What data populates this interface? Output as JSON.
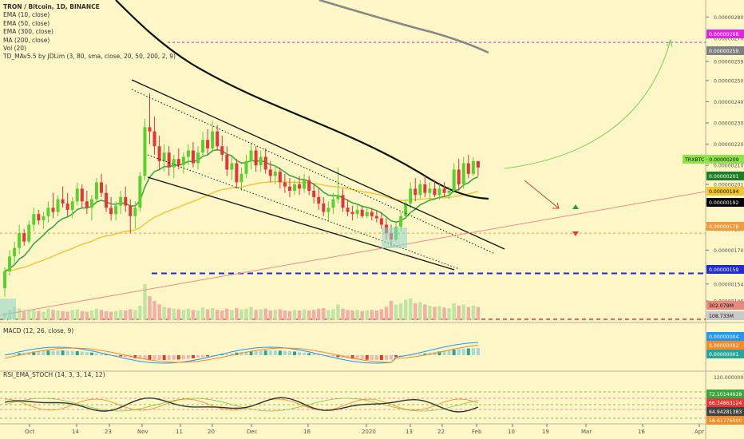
{
  "header": {
    "symbol_line": "TRON / Bitcoin, 1D, BINANCE",
    "indicators": [
      "EMA (10, close)",
      "EMA (50, close)",
      "EMA (300, close)",
      "MA (200, close)",
      "Vol (20)",
      "TD_MAv5.5 by JDLim (3, 80, sma, close, 20, 50, 200, 2, 9)"
    ]
  },
  "price_axis": {
    "ticks": [
      "0.00000280",
      "0.00000270",
      "0.00000259",
      "0.00000250",
      "0.00000240",
      "0.00000230",
      "0.00000220",
      "0.00000210",
      "0.00000201",
      "0.00000192",
      "0.00000180",
      "0.00000170",
      "0.00000162",
      "0.00000154",
      "0.00000146"
    ],
    "labels": [
      {
        "text": "0.00000268",
        "color": "#e024e0"
      },
      {
        "text": "0.00000259",
        "color": "#808080"
      },
      {
        "text": "TRXBTC · 0.00000209",
        "color": "#8ee34d"
      },
      {
        "text": "0.00000201",
        "color": "#1b7f2a"
      },
      {
        "text": "0.00000194",
        "color": "#f3c531"
      },
      {
        "text": "0.00000192",
        "color": "#000000"
      },
      {
        "text": "0.00000178",
        "color": "#f59a3b"
      },
      {
        "text": "0.00000159",
        "color": "#1e2bd6"
      },
      {
        "text": "302.079M",
        "color": "#e9887f"
      },
      {
        "text": "108.733M",
        "color": "#c9c9c9"
      }
    ]
  },
  "macd": {
    "label": "MACD (12, 26, close, 9)",
    "labels": [
      {
        "text": "0.00000004",
        "color": "#2196f3"
      },
      {
        "text": "0.00000002",
        "color": "#f48b24"
      },
      {
        "text": "0.00000001",
        "color": "#26a69a"
      }
    ]
  },
  "rsi": {
    "label": "RSI_EMA_STOCH (14, 3, 3, 14, 12)",
    "ticks": [
      "120.00000000"
    ],
    "labels": [
      {
        "text": "72.10144928",
        "color": "#3ba641"
      },
      {
        "text": "66.34863124",
        "color": "#e53935"
      },
      {
        "text": "64.94281383",
        "color": "#424242"
      },
      {
        "text": "58.61776000",
        "color": "#f48b24"
      }
    ]
  },
  "time_axis": [
    "Oct",
    "14",
    "23",
    "Nov",
    "11",
    "20",
    "Dec",
    "16",
    "2020",
    "13",
    "22",
    "Feb",
    "10",
    "19",
    "Mar",
    "16",
    "Apr"
  ],
  "chart_data": {
    "type": "candlestick",
    "title": "TRON / Bitcoin, 1D, BINANCE",
    "symbol": "TRXBTC",
    "last_price": 2.09e-06,
    "price_range": [
      1.4e-06,
      2.85e-06
    ],
    "horizontal_levels": [
      2.68e-06,
      1.78e-06,
      1.59e-06
    ],
    "candles_ohlc": [
      [
        1.52e-06,
        1.62e-06,
        1.48e-06,
        1.6e-06
      ],
      [
        1.6e-06,
        1.7e-06,
        1.58e-06,
        1.67e-06
      ],
      [
        1.67e-06,
        1.74e-06,
        1.63e-06,
        1.71e-06
      ],
      [
        1.71e-06,
        1.82e-06,
        1.68e-06,
        1.78e-06
      ],
      [
        1.78e-06,
        1.8e-06,
        1.72e-06,
        1.74e-06
      ],
      [
        1.74e-06,
        1.84e-06,
        1.73e-06,
        1.82e-06
      ],
      [
        1.82e-06,
        1.9e-06,
        1.79e-06,
        1.87e-06
      ],
      [
        1.87e-06,
        1.89e-06,
        1.82e-06,
        1.84e-06
      ],
      [
        1.84e-06,
        1.88e-06,
        1.8e-06,
        1.86e-06
      ],
      [
        1.86e-06,
        1.93e-06,
        1.83e-06,
        1.9e-06
      ],
      [
        1.9e-06,
        1.97e-06,
        1.85e-06,
        1.88e-06
      ],
      [
        1.88e-06,
        1.96e-06,
        1.86e-06,
        1.94e-06
      ],
      [
        1.94e-06,
        2e-06,
        1.9e-06,
        1.92e-06
      ],
      [
        1.92e-06,
        1.97e-06,
        1.86e-06,
        1.89e-06
      ],
      [
        1.89e-06,
        1.95e-06,
        1.85e-06,
        1.93e-06
      ],
      [
        1.93e-06,
        2.02e-06,
        1.91e-06,
        1.99e-06
      ],
      [
        1.99e-06,
        2.01e-06,
        1.9e-06,
        1.93e-06
      ],
      [
        1.93e-06,
        1.98e-06,
        1.87e-06,
        1.9e-06
      ],
      [
        1.9e-06,
        1.96e-06,
        1.84e-06,
        1.94e-06
      ],
      [
        1.94e-06,
        2.04e-06,
        1.92e-06,
        2.02e-06
      ],
      [
        2.02e-06,
        2.06e-06,
        1.95e-06,
        1.97e-06
      ],
      [
        1.97e-06,
        2.01e-06,
        1.88e-06,
        1.9e-06
      ],
      [
        1.9e-06,
        1.95e-06,
        1.84e-06,
        1.87e-06
      ],
      [
        1.87e-06,
        1.93e-06,
        1.84e-06,
        1.91e-06
      ],
      [
        1.91e-06,
        1.98e-06,
        1.87e-06,
        1.95e-06
      ],
      [
        1.95e-06,
        2e-06,
        1.88e-06,
        1.91e-06
      ],
      [
        1.91e-06,
        1.94e-06,
        1.78e-06,
        1.86e-06
      ],
      [
        1.86e-06,
        1.93e-06,
        1.8e-06,
        1.9e-06
      ],
      [
        1.9e-06,
        2.07e-06,
        1.88e-06,
        2.05e-06
      ],
      [
        2.05e-06,
        2.32e-06,
        2.03e-06,
        2.28e-06
      ],
      [
        2.28e-06,
        2.44e-06,
        2.2e-06,
        2.26e-06
      ],
      [
        2.26e-06,
        2.33e-06,
        2.15e-06,
        2.19e-06
      ],
      [
        2.19e-06,
        2.24e-06,
        2.08e-06,
        2.12e-06
      ],
      [
        2.12e-06,
        2.2e-06,
        2.07e-06,
        2.16e-06
      ],
      [
        2.16e-06,
        2.19e-06,
        2.05e-06,
        2.09e-06
      ],
      [
        2.09e-06,
        2.15e-06,
        2.04e-06,
        2.13e-06
      ],
      [
        2.13e-06,
        2.18e-06,
        2.08e-06,
        2.1e-06
      ],
      [
        2.1e-06,
        2.16e-06,
        2.06e-06,
        2.14e-06
      ],
      [
        2.14e-06,
        2.2e-06,
        2.1e-06,
        2.17e-06
      ],
      [
        2.17e-06,
        2.21e-06,
        2.09e-06,
        2.11e-06
      ],
      [
        2.11e-06,
        2.19e-06,
        2.08e-06,
        2.16e-06
      ],
      [
        2.16e-06,
        2.26e-06,
        2.14e-06,
        2.22e-06
      ],
      [
        2.22e-06,
        2.27e-06,
        2.15e-06,
        2.18e-06
      ],
      [
        2.18e-06,
        2.31e-06,
        2.16e-06,
        2.26e-06
      ],
      [
        2.26e-06,
        2.29e-06,
        2.17e-06,
        2.19e-06
      ],
      [
        2.19e-06,
        2.24e-06,
        2.12e-06,
        2.15e-06
      ],
      [
        2.15e-06,
        2.19e-06,
        2.05e-06,
        2.08e-06
      ],
      [
        2.08e-06,
        2.14e-06,
        2.03e-06,
        2.11e-06
      ],
      [
        2.11e-06,
        2.13e-06,
        1.99e-06,
        2.02e-06
      ],
      [
        2.02e-06,
        2.09e-06,
        1.98e-06,
        2.06e-06
      ],
      [
        2.06e-06,
        2.15e-06,
        2.04e-06,
        2.12e-06
      ],
      [
        2.12e-06,
        2.2e-06,
        2.08e-06,
        2.17e-06
      ],
      [
        2.17e-06,
        2.19e-06,
        2.07e-06,
        2.1e-06
      ],
      [
        2.1e-06,
        2.17e-06,
        2.07e-06,
        2.14e-06
      ],
      [
        2.14e-06,
        2.18e-06,
        2.06e-06,
        2.08e-06
      ],
      [
        2.08e-06,
        2.12e-06,
        2.02e-06,
        2.05e-06
      ],
      [
        2.05e-06,
        2.1e-06,
        2.01e-06,
        2.07e-06
      ],
      [
        2.07e-06,
        2.09e-06,
        1.99e-06,
        2.02e-06
      ],
      [
        2.02e-06,
        2.06e-06,
        1.97e-06,
        2e-06
      ],
      [
        2e-06,
        2.04e-06,
        1.95e-06,
        1.98e-06
      ],
      [
        1.98e-06,
        2.03e-06,
        1.96e-06,
        2.01e-06
      ],
      [
        2.01e-06,
        2.05e-06,
        1.96e-06,
        1.99e-06
      ],
      [
        1.99e-06,
        2.06e-06,
        1.97e-06,
        2.03e-06
      ],
      [
        2.03e-06,
        2.05e-06,
        1.96e-06,
        1.98e-06
      ],
      [
        1.98e-06,
        2.01e-06,
        1.92e-06,
        1.95e-06
      ],
      [
        1.95e-06,
        1.99e-06,
        1.89e-06,
        1.92e-06
      ],
      [
        1.92e-06,
        1.95e-06,
        1.86e-06,
        1.88e-06
      ],
      [
        1.88e-06,
        1.93e-06,
        1.84e-06,
        1.9e-06
      ],
      [
        1.9e-06,
        1.97e-06,
        1.87e-06,
        1.94e-06
      ],
      [
        1.94e-06,
        2.09e-06,
        1.92e-06,
        1.96e-06
      ],
      [
        1.96e-06,
        1.99e-06,
        1.88e-06,
        1.9e-06
      ],
      [
        1.9e-06,
        1.94e-06,
        1.86e-06,
        1.88e-06
      ],
      [
        1.88e-06,
        1.91e-06,
        1.84e-06,
        1.87e-06
      ],
      [
        1.87e-06,
        1.92e-06,
        1.85e-06,
        1.89e-06
      ],
      [
        1.89e-06,
        1.91e-06,
        1.85e-06,
        1.86e-06
      ],
      [
        1.86e-06,
        1.9e-06,
        1.85e-06,
        1.88e-06
      ],
      [
        1.88e-06,
        1.9e-06,
        1.84e-06,
        1.86e-06
      ],
      [
        1.86e-06,
        1.89e-06,
        1.83e-06,
        1.85e-06
      ],
      [
        1.85e-06,
        1.88e-06,
        1.8e-06,
        1.82e-06
      ],
      [
        1.82e-06,
        1.85e-06,
        1.75e-06,
        1.78e-06
      ],
      [
        1.78e-06,
        1.82e-06,
        1.72e-06,
        1.75e-06
      ],
      [
        1.75e-06,
        1.83e-06,
        1.74e-06,
        1.81e-06
      ],
      [
        1.81e-06,
        1.88e-06,
        1.79e-06,
        1.86e-06
      ],
      [
        1.86e-06,
        1.94e-06,
        1.85e-06,
        1.92e-06
      ],
      [
        1.92e-06,
        2.02e-06,
        1.9e-06,
        1.99e-06
      ],
      [
        1.99e-06,
        2.04e-06,
        1.93e-06,
        1.96e-06
      ],
      [
        1.96e-06,
        2.03e-06,
        1.94e-06,
        2.01e-06
      ],
      [
        2.01e-06,
        2.05e-06,
        1.95e-06,
        1.97e-06
      ],
      [
        1.97e-06,
        2.02e-06,
        1.93e-06,
        1.99e-06
      ],
      [
        1.99e-06,
        2.03e-06,
        1.95e-06,
        1.96e-06
      ],
      [
        1.96e-06,
        2.01e-06,
        1.94e-06,
        1.99e-06
      ],
      [
        1.99e-06,
        2.02e-06,
        1.95e-06,
        1.97e-06
      ],
      [
        1.97e-06,
        2e-06,
        1.94e-06,
        1.98e-06
      ],
      [
        1.98e-06,
        2.11e-06,
        1.97e-06,
        2.08e-06
      ],
      [
        2.08e-06,
        2.13e-06,
        1.98e-06,
        2.01e-06
      ],
      [
        2.01e-06,
        2.14e-06,
        1.99e-06,
        2.11e-06
      ],
      [
        2.11e-06,
        2.15e-06,
        2.04e-06,
        2.06e-06
      ],
      [
        2.06e-06,
        2.14e-06,
        2.05e-06,
        2.12e-06
      ],
      [
        2.12e-06,
        2.12e-06,
        2.05e-06,
        2.09e-06
      ]
    ],
    "volume": [
      60,
      85,
      110,
      95,
      70,
      80,
      90,
      75,
      70,
      95,
      85,
      80,
      75,
      70,
      85,
      90,
      75,
      70,
      80,
      95,
      85,
      75,
      70,
      75,
      85,
      80,
      90,
      85,
      120,
      300,
      200,
      160,
      130,
      110,
      100,
      95,
      90,
      85,
      95,
      85,
      80,
      105,
      90,
      100,
      85,
      80,
      95,
      85,
      100,
      90,
      95,
      110,
      85,
      90,
      95,
      80,
      85,
      90,
      80,
      75,
      85,
      80,
      90,
      80,
      85,
      95,
      100,
      85,
      90,
      130,
      95,
      85,
      80,
      85,
      75,
      80,
      85,
      80,
      90,
      110,
      160,
      130,
      140,
      170,
      180,
      140,
      150,
      130,
      120,
      110,
      115,
      105,
      100,
      140,
      120,
      130,
      110,
      120,
      110
    ],
    "macd": {
      "series": [
        "MACD",
        "Signal",
        "Histogram"
      ]
    },
    "rsi": {
      "levels": [
        72.10144928,
        66.34863124,
        64.94281383,
        58.61776
      ]
    }
  }
}
